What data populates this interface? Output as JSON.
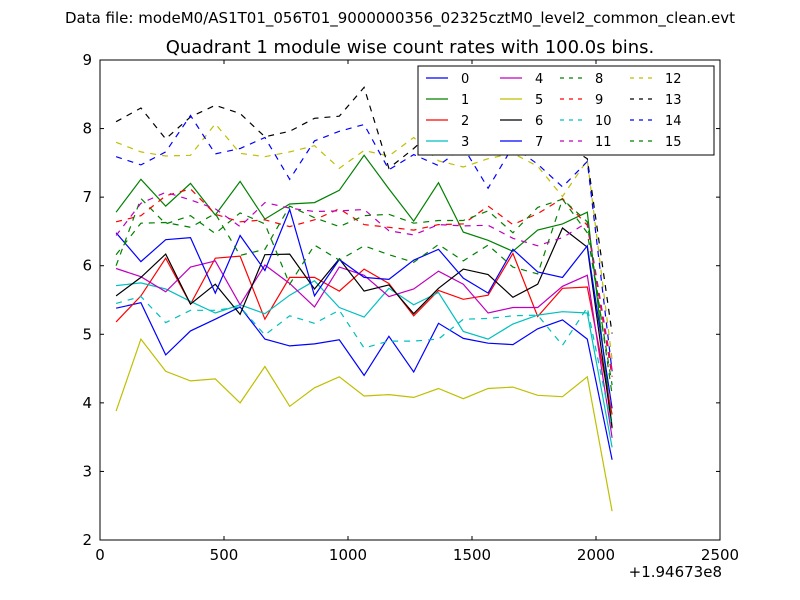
{
  "suptitle": "Data file: modeM0/AS1T01_056T01_9000000356_02325cztM0_level2_common_clean.evt",
  "chart_data": {
    "type": "line",
    "title": "Quadrant 1 module wise count rates with 100.0s bins.",
    "xlabel": "",
    "ylabel": "",
    "xlim": [
      0,
      2500
    ],
    "ylim": [
      2,
      9
    ],
    "x_offset_label": "+1.94673e8",
    "x_ticks": [
      0,
      500,
      1000,
      1500,
      2000,
      2500
    ],
    "y_ticks": [
      2,
      3,
      4,
      5,
      6,
      7,
      8,
      9
    ],
    "grid": false,
    "legend_position": "top-right",
    "x": [
      65,
      165,
      265,
      365,
      465,
      565,
      665,
      765,
      865,
      965,
      1065,
      1165,
      1265,
      1365,
      1465,
      1565,
      1665,
      1765,
      1865,
      1965,
      2065
    ],
    "series": [
      {
        "name": "0",
        "color": "#0000ff",
        "dash": "solid",
        "values": [
          5.38,
          5.46,
          4.7,
          5.05,
          5.22,
          5.4,
          4.93,
          4.83,
          4.86,
          4.92,
          4.4,
          4.97,
          4.45,
          5.16,
          4.94,
          4.87,
          4.85,
          5.08,
          5.21,
          4.93,
          3.17
        ]
      },
      {
        "name": "1",
        "color": "#008000",
        "dash": "solid",
        "values": [
          6.78,
          7.26,
          6.87,
          7.2,
          6.74,
          7.23,
          6.68,
          6.9,
          6.92,
          7.1,
          7.61,
          7.12,
          6.65,
          7.21,
          6.49,
          6.37,
          6.21,
          6.52,
          6.61,
          6.78,
          3.65
        ]
      },
      {
        "name": "2",
        "color": "#ff0000",
        "dash": "solid",
        "values": [
          5.18,
          5.56,
          6.11,
          5.44,
          6.11,
          6.14,
          5.22,
          5.83,
          5.83,
          5.63,
          5.95,
          5.74,
          5.27,
          5.64,
          5.51,
          5.57,
          6.18,
          5.26,
          5.67,
          5.69,
          3.83
        ]
      },
      {
        "name": "3",
        "color": "#00bfbf",
        "dash": "solid",
        "values": [
          5.71,
          5.75,
          5.66,
          5.48,
          5.31,
          5.43,
          5.3,
          5.57,
          5.78,
          5.39,
          5.25,
          5.67,
          5.43,
          5.61,
          5.04,
          4.93,
          5.15,
          5.28,
          5.33,
          5.31,
          3.35
        ]
      },
      {
        "name": "4",
        "color": "#bf00bf",
        "dash": "solid",
        "values": [
          5.96,
          5.84,
          5.62,
          5.98,
          6.07,
          5.43,
          6.01,
          5.74,
          5.4,
          5.98,
          5.86,
          5.55,
          5.66,
          5.92,
          5.73,
          5.31,
          5.39,
          5.39,
          5.7,
          5.86,
          3.49
        ]
      },
      {
        "name": "5",
        "color": "#bfbf00",
        "dash": "solid",
        "values": [
          3.88,
          4.93,
          4.46,
          4.32,
          4.35,
          4.0,
          4.53,
          3.95,
          4.22,
          4.38,
          4.1,
          4.12,
          4.08,
          4.21,
          4.06,
          4.21,
          4.23,
          4.11,
          4.09,
          4.38,
          2.42
        ]
      },
      {
        "name": "6",
        "color": "#000000",
        "dash": "solid",
        "values": [
          5.56,
          5.83,
          6.17,
          5.44,
          5.73,
          5.29,
          6.16,
          6.17,
          5.66,
          6.1,
          5.63,
          5.72,
          5.3,
          5.67,
          5.95,
          5.87,
          5.54,
          5.73,
          6.55,
          6.27,
          3.63
        ]
      },
      {
        "name": "7",
        "color": "#0000ff",
        "dash": "solid",
        "values": [
          6.48,
          6.06,
          6.38,
          6.41,
          5.6,
          6.44,
          5.93,
          6.82,
          5.56,
          6.09,
          5.83,
          5.8,
          6.08,
          6.24,
          5.82,
          5.6,
          6.24,
          5.91,
          5.83,
          6.29,
          3.92
        ]
      },
      {
        "name": "8",
        "color": "#008000",
        "dash": "dashed",
        "values": [
          6.0,
          6.98,
          6.61,
          6.73,
          6.47,
          6.77,
          6.61,
          5.73,
          6.3,
          6.08,
          6.29,
          6.16,
          6.05,
          6.31,
          6.07,
          6.3,
          5.98,
          5.88,
          6.97,
          6.48,
          4.26
        ]
      },
      {
        "name": "9",
        "color": "#ff0000",
        "dash": "dashed",
        "values": [
          6.64,
          6.73,
          7.02,
          7.12,
          6.75,
          6.64,
          6.67,
          6.57,
          6.67,
          6.83,
          6.6,
          6.56,
          6.52,
          6.6,
          6.61,
          6.87,
          6.6,
          6.76,
          6.98,
          6.59,
          4.38
        ]
      },
      {
        "name": "10",
        "color": "#00bfbf",
        "dash": "dashed",
        "values": [
          5.45,
          5.55,
          5.17,
          5.35,
          5.35,
          5.4,
          4.99,
          5.27,
          5.16,
          5.35,
          4.8,
          4.9,
          4.9,
          4.93,
          5.22,
          5.23,
          5.27,
          5.28,
          4.84,
          5.39,
          3.63
        ]
      },
      {
        "name": "11",
        "color": "#bf00bf",
        "dash": "dashed",
        "values": [
          6.44,
          6.91,
          7.07,
          6.96,
          6.83,
          6.57,
          6.92,
          6.84,
          6.79,
          6.8,
          6.82,
          6.51,
          6.45,
          6.6,
          6.58,
          6.59,
          6.4,
          6.29,
          6.41,
          6.63,
          4.48
        ]
      },
      {
        "name": "12",
        "color": "#bfbf00",
        "dash": "dashed",
        "values": [
          7.8,
          7.66,
          7.6,
          7.61,
          8.07,
          7.64,
          7.59,
          7.66,
          7.75,
          7.42,
          7.68,
          7.6,
          7.87,
          7.53,
          7.44,
          7.56,
          7.64,
          7.45,
          7.01,
          7.54,
          4.63
        ]
      },
      {
        "name": "13",
        "color": "#000000",
        "dash": "dashed",
        "values": [
          8.1,
          8.3,
          7.85,
          8.17,
          8.34,
          8.22,
          7.88,
          7.96,
          8.15,
          8.18,
          8.6,
          7.42,
          7.71,
          8.04,
          7.84,
          8.19,
          8.23,
          8.3,
          7.78,
          7.56,
          5.01
        ]
      },
      {
        "name": "14",
        "color": "#0000ff",
        "dash": "dashed",
        "values": [
          7.59,
          7.47,
          7.66,
          8.19,
          7.63,
          7.71,
          7.87,
          7.26,
          7.82,
          7.96,
          8.06,
          7.4,
          7.62,
          7.46,
          7.73,
          7.13,
          7.74,
          7.48,
          7.15,
          7.52,
          4.46
        ]
      },
      {
        "name": "15",
        "color": "#008000",
        "dash": "dashed",
        "values": [
          6.16,
          6.62,
          6.63,
          6.56,
          6.76,
          6.15,
          6.24,
          6.87,
          6.7,
          6.57,
          6.73,
          6.75,
          6.62,
          6.66,
          6.66,
          6.8,
          6.48,
          6.85,
          6.97,
          6.64,
          4.12
        ]
      }
    ]
  }
}
